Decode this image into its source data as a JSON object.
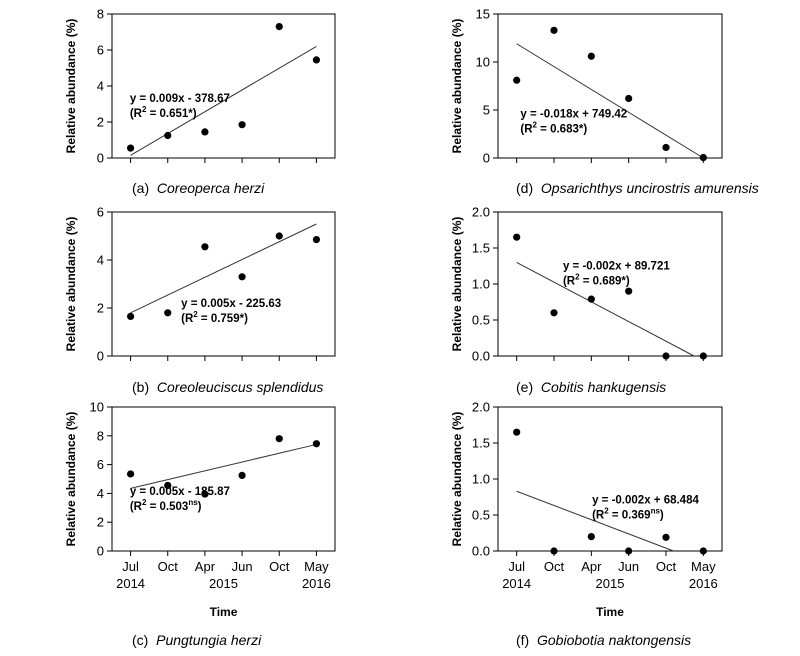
{
  "chart_data": [
    {
      "id": "a",
      "type": "scatter",
      "caption_prefix": "(a)",
      "caption_species": "Coreoperca herzi",
      "ylabel": "Relative abundance (%)",
      "ylim": [
        0,
        8
      ],
      "yticks": [
        "0",
        "2",
        "4",
        "6",
        "8"
      ],
      "x": [
        0,
        1,
        2,
        3,
        4,
        5
      ],
      "xlim": [
        -0.5,
        5.5
      ],
      "points": [
        {
          "x": 0,
          "y": 0.55
        },
        {
          "x": 1,
          "y": 1.25
        },
        {
          "x": 2,
          "y": 1.45
        },
        {
          "x": 3,
          "y": 1.85
        },
        {
          "x": 4,
          "y": 7.3
        },
        {
          "x": 5,
          "y": 5.45
        }
      ],
      "fit": [
        {
          "x": 0,
          "y": 0.15
        },
        {
          "x": 5,
          "y": 6.2
        }
      ],
      "equation": "y = 0.009x - 378.67",
      "r2_open": "(R",
      "r2_sup": "2",
      "r2_close": " = 0.651*)",
      "eq_pos": "upper-left",
      "xlabel": "",
      "show_x_ticks": false
    },
    {
      "id": "b",
      "type": "scatter",
      "caption_prefix": "(b)",
      "caption_species": "Coreoleuciscus splendidus",
      "ylabel": "Relative abundance (%)",
      "ylim": [
        0,
        6
      ],
      "yticks": [
        "0",
        "2",
        "4",
        "6"
      ],
      "x": [
        0,
        1,
        2,
        3,
        4,
        5
      ],
      "xlim": [
        -0.5,
        5.5
      ],
      "points": [
        {
          "x": 0,
          "y": 1.65
        },
        {
          "x": 1,
          "y": 1.8
        },
        {
          "x": 2,
          "y": 4.55
        },
        {
          "x": 3,
          "y": 3.3
        },
        {
          "x": 4,
          "y": 5.0
        },
        {
          "x": 5,
          "y": 4.85
        }
      ],
      "fit": [
        {
          "x": 0,
          "y": 1.8
        },
        {
          "x": 5,
          "y": 5.5
        }
      ],
      "equation": "y = 0.005x - 225.63",
      "r2_open": "(R",
      "r2_sup": "2",
      "r2_close": " = 0.759*)",
      "eq_pos": "lower-middle",
      "xlabel": "",
      "show_x_ticks": false
    },
    {
      "id": "c",
      "type": "scatter",
      "caption_prefix": "(c)",
      "caption_species": "Pungtungia herzi",
      "ylabel": "Relative abundance (%)",
      "ylim": [
        0,
        10
      ],
      "yticks": [
        "0",
        "2",
        "4",
        "6",
        "8",
        "10"
      ],
      "x": [
        0,
        1,
        2,
        3,
        4,
        5
      ],
      "xlim": [
        -0.5,
        5.5
      ],
      "points": [
        {
          "x": 0,
          "y": 5.35
        },
        {
          "x": 1,
          "y": 4.55
        },
        {
          "x": 2,
          "y": 3.95
        },
        {
          "x": 3,
          "y": 5.25
        },
        {
          "x": 4,
          "y": 7.8
        },
        {
          "x": 5,
          "y": 7.45
        }
      ],
      "fit": [
        {
          "x": 0,
          "y": 4.35
        },
        {
          "x": 5,
          "y": 7.4
        }
      ],
      "equation": "y = 0.005x - 185.87",
      "r2_open": "(R",
      "r2_sup": "2",
      "r2_close": " = 0.503",
      "r2_ns": "ns",
      "r2_end": ")",
      "eq_pos": "upper-left",
      "xlabel": "Time",
      "show_x_ticks": true
    },
    {
      "id": "d",
      "type": "scatter",
      "caption_prefix": "(d)",
      "caption_species": "Opsarichthys uncirostris amurensis",
      "ylabel": "Relative abundance (%)",
      "ylim": [
        0,
        15
      ],
      "yticks": [
        "0",
        "5",
        "10",
        "15"
      ],
      "x": [
        0,
        1,
        2,
        3,
        4,
        5
      ],
      "xlim": [
        -0.5,
        5.5
      ],
      "points": [
        {
          "x": 0,
          "y": 8.1
        },
        {
          "x": 1,
          "y": 13.3
        },
        {
          "x": 2,
          "y": 10.6
        },
        {
          "x": 3,
          "y": 6.2
        },
        {
          "x": 4,
          "y": 1.1
        },
        {
          "x": 5,
          "y": 0.05
        }
      ],
      "fit": [
        {
          "x": 0,
          "y": 11.9
        },
        {
          "x": 5,
          "y": 0.0
        }
      ],
      "equation": "y = -0.018x + 749.42",
      "r2_open": "(R",
      "r2_sup": "2",
      "r2_close": " = 0.683*)",
      "eq_pos": "lower-left",
      "xlabel": "",
      "show_x_ticks": false
    },
    {
      "id": "e",
      "type": "scatter",
      "caption_prefix": "(e)",
      "caption_species": "Cobitis hankugensis",
      "ylabel": "Relative abundance (%)",
      "ylim": [
        0,
        2
      ],
      "yticks": [
        "0.0",
        "0.5",
        "1.0",
        "1.5",
        "2.0"
      ],
      "x": [
        0,
        1,
        2,
        3,
        4,
        5
      ],
      "xlim": [
        -0.5,
        5.5
      ],
      "points": [
        {
          "x": 0,
          "y": 1.65
        },
        {
          "x": 1,
          "y": 0.6
        },
        {
          "x": 2,
          "y": 0.79
        },
        {
          "x": 3,
          "y": 0.9
        },
        {
          "x": 4,
          "y": 0.0
        },
        {
          "x": 5,
          "y": 0.0
        }
      ],
      "fit": [
        {
          "x": 0,
          "y": 1.3
        },
        {
          "x": 4.75,
          "y": 0.0
        }
      ],
      "equation": "y = -0.002x + 89.721",
      "r2_open": "(R",
      "r2_sup": "2",
      "r2_close": " = 0.689*)",
      "eq_pos": "upper-right",
      "xlabel": "",
      "show_x_ticks": false
    },
    {
      "id": "f",
      "type": "scatter",
      "caption_prefix": "(f)",
      "caption_species": "Gobiobotia naktongensis",
      "ylabel": "Relative abundance (%)",
      "ylim": [
        0,
        2
      ],
      "yticks": [
        "0.0",
        "0.5",
        "1.0",
        "1.5",
        "2.0"
      ],
      "x": [
        0,
        1,
        2,
        3,
        4,
        5
      ],
      "xlim": [
        -0.5,
        5.5
      ],
      "points": [
        {
          "x": 0,
          "y": 1.65
        },
        {
          "x": 1,
          "y": 0.0
        },
        {
          "x": 2,
          "y": 0.2
        },
        {
          "x": 3,
          "y": 0.0
        },
        {
          "x": 4,
          "y": 0.19
        },
        {
          "x": 5,
          "y": 0.0
        }
      ],
      "fit": [
        {
          "x": 0,
          "y": 0.83
        },
        {
          "x": 4.2,
          "y": 0.0
        }
      ],
      "equation": "y = -0.002x + 68.484",
      "r2_open": "(R",
      "r2_sup": "2",
      "r2_close": " = 0.369",
      "r2_ns": "ns",
      "r2_end": ")",
      "eq_pos": "lower-right",
      "xlabel": "Time",
      "show_x_ticks": true
    }
  ],
  "time_axis": {
    "months": [
      "Jul",
      "Oct",
      "Apr",
      "Jun",
      "Oct",
      "May"
    ],
    "years": [
      {
        "label": "2014",
        "x": 0
      },
      {
        "label": "2015",
        "x": 2.5
      },
      {
        "label": "2016",
        "x": 5
      }
    ]
  }
}
